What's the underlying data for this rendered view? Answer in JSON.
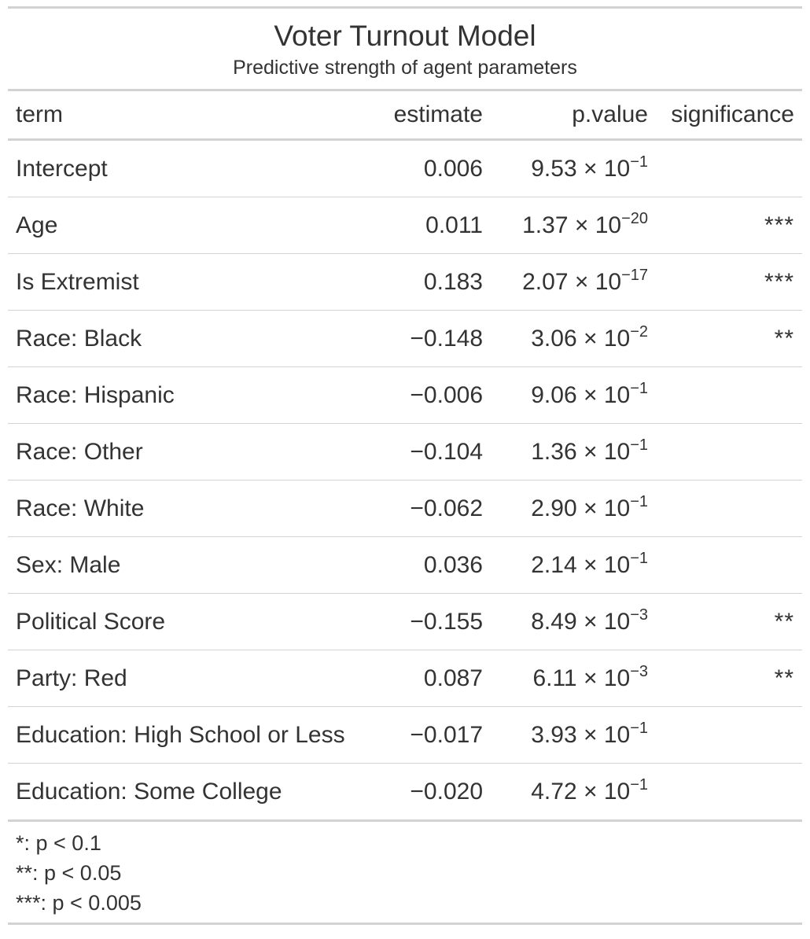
{
  "table": {
    "title": "Voter Turnout Model",
    "subtitle": "Predictive strength of agent parameters",
    "columns": {
      "term": "term",
      "estimate": "estimate",
      "p_value": "p.value",
      "significance": "significance"
    },
    "rows": [
      {
        "term": "Intercept",
        "estimate": "0.006",
        "p_mantissa": "9.53",
        "p_exp": "−1",
        "significance": ""
      },
      {
        "term": "Age",
        "estimate": "0.011",
        "p_mantissa": "1.37",
        "p_exp": "−20",
        "significance": "***"
      },
      {
        "term": "Is Extremist",
        "estimate": "0.183",
        "p_mantissa": "2.07",
        "p_exp": "−17",
        "significance": "***"
      },
      {
        "term": "Race: Black",
        "estimate": "−0.148",
        "p_mantissa": "3.06",
        "p_exp": "−2",
        "significance": "**"
      },
      {
        "term": "Race: Hispanic",
        "estimate": "−0.006",
        "p_mantissa": "9.06",
        "p_exp": "−1",
        "significance": ""
      },
      {
        "term": "Race: Other",
        "estimate": "−0.104",
        "p_mantissa": "1.36",
        "p_exp": "−1",
        "significance": ""
      },
      {
        "term": "Race: White",
        "estimate": "−0.062",
        "p_mantissa": "2.90",
        "p_exp": "−1",
        "significance": ""
      },
      {
        "term": "Sex: Male",
        "estimate": "0.036",
        "p_mantissa": "2.14",
        "p_exp": "−1",
        "significance": ""
      },
      {
        "term": "Political Score",
        "estimate": "−0.155",
        "p_mantissa": "8.49",
        "p_exp": "−3",
        "significance": "**"
      },
      {
        "term": "Party: Red",
        "estimate": "0.087",
        "p_mantissa": "6.11",
        "p_exp": "−3",
        "significance": "**"
      },
      {
        "term": "Education: High School or Less",
        "estimate": "−0.017",
        "p_mantissa": "3.93",
        "p_exp": "−1",
        "significance": ""
      },
      {
        "term": "Education: Some College",
        "estimate": "−0.020",
        "p_mantissa": "4.72",
        "p_exp": "−1",
        "significance": ""
      }
    ],
    "sci_separator": " × 10",
    "footnotes": [
      "*: p < 0.1",
      "**: p < 0.05",
      "***: p < 0.005"
    ]
  },
  "colors": {
    "text": "#333333",
    "rule": "#d3d3d3"
  }
}
